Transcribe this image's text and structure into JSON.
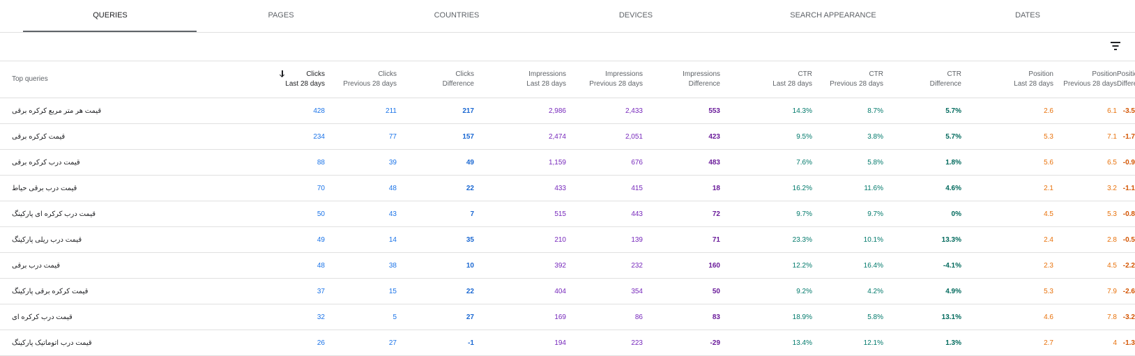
{
  "tabs": [
    {
      "label": "QUERIES",
      "active": true
    },
    {
      "label": "PAGES",
      "active": false
    },
    {
      "label": "COUNTRIES",
      "active": false
    },
    {
      "label": "DEVICES",
      "active": false
    },
    {
      "label": "SEARCH APPEARANCE",
      "active": false
    },
    {
      "label": "DATES",
      "active": false
    }
  ],
  "toolbar": {
    "filter_icon": "filter-list-icon"
  },
  "table": {
    "first_header": "Top queries",
    "sort_icon": "arrow-down-icon",
    "headers": [
      {
        "line1": "Clicks",
        "line2": "Last 28 days"
      },
      {
        "line1": "Clicks",
        "line2": "Previous 28 days"
      },
      {
        "line1": "Clicks",
        "line2": "Difference"
      },
      {
        "line1": "Impressions",
        "line2": "Last 28 days"
      },
      {
        "line1": "Impressions",
        "line2": "Previous 28 days"
      },
      {
        "line1": "Impressions",
        "line2": "Difference"
      },
      {
        "line1": "CTR",
        "line2": "Last 28 days"
      },
      {
        "line1": "CTR",
        "line2": "Previous 28 days"
      },
      {
        "line1": "CTR",
        "line2": "Difference"
      },
      {
        "line1": "Position",
        "line2": "Last 28 days"
      },
      {
        "line1": "Position",
        "line2": "Previous 28 days"
      },
      {
        "line1": "Position",
        "line2": "Difference"
      }
    ],
    "rows": [
      {
        "query": "قیمت هر متر مربع کرکره برقی",
        "values": [
          "428",
          "211",
          "217",
          "2,986",
          "2,433",
          "553",
          "14.3%",
          "8.7%",
          "5.7%",
          "2.6",
          "6.1",
          "-3.5"
        ]
      },
      {
        "query": "قیمت کرکره برقی",
        "values": [
          "234",
          "77",
          "157",
          "2,474",
          "2,051",
          "423",
          "9.5%",
          "3.8%",
          "5.7%",
          "5.3",
          "7.1",
          "-1.7"
        ]
      },
      {
        "query": "قیمت درب کرکره برقی",
        "values": [
          "88",
          "39",
          "49",
          "1,159",
          "676",
          "483",
          "7.6%",
          "5.8%",
          "1.8%",
          "5.6",
          "6.5",
          "-0.9"
        ]
      },
      {
        "query": "قیمت درب برقی حیاط",
        "values": [
          "70",
          "48",
          "22",
          "433",
          "415",
          "18",
          "16.2%",
          "11.6%",
          "4.6%",
          "2.1",
          "3.2",
          "-1.1"
        ]
      },
      {
        "query": "قیمت درب کرکره ای پارکینگ",
        "values": [
          "50",
          "43",
          "7",
          "515",
          "443",
          "72",
          "9.7%",
          "9.7%",
          "0%",
          "4.5",
          "5.3",
          "-0.8"
        ]
      },
      {
        "query": "قیمت درب ریلی پارکینگ",
        "values": [
          "49",
          "14",
          "35",
          "210",
          "139",
          "71",
          "23.3%",
          "10.1%",
          "13.3%",
          "2.4",
          "2.8",
          "-0.5"
        ]
      },
      {
        "query": "قیمت درب برقی",
        "values": [
          "48",
          "38",
          "10",
          "392",
          "232",
          "160",
          "12.2%",
          "16.4%",
          "-4.1%",
          "2.3",
          "4.5",
          "-2.2"
        ]
      },
      {
        "query": "قیمت کرکره برقی پارکینگ",
        "values": [
          "37",
          "15",
          "22",
          "404",
          "354",
          "50",
          "9.2%",
          "4.2%",
          "4.9%",
          "5.3",
          "7.9",
          "-2.6"
        ]
      },
      {
        "query": "قیمت درب کرکره ای",
        "values": [
          "32",
          "5",
          "27",
          "169",
          "86",
          "83",
          "18.9%",
          "5.8%",
          "13.1%",
          "4.6",
          "7.8",
          "-3.2"
        ]
      },
      {
        "query": "قیمت درب اتوماتیک پارکینگ",
        "values": [
          "26",
          "27",
          "-1",
          "194",
          "223",
          "-29",
          "13.4%",
          "12.1%",
          "1.3%",
          "2.7",
          "4",
          "-1.3"
        ]
      }
    ]
  }
}
